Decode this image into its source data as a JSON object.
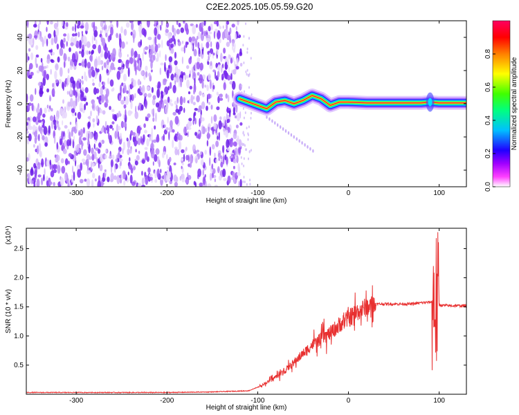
{
  "title": "C2E2.2025.105.05.59.G20",
  "colors": {
    "trace": "#e83030",
    "grid_background": "#ffffff",
    "axis": "#000000",
    "noise_dots": "#7b2cf0",
    "colormap": [
      "#ffffff",
      "#ff00ff",
      "#8000ff",
      "#0000ff",
      "#00ffff",
      "#00ff00",
      "#ffff00",
      "#ff8000",
      "#ff0000",
      "#ff0050"
    ]
  },
  "chart_data": [
    {
      "type": "heatmap",
      "xlabel": "Height of straight line (km)",
      "ylabel": "Frequency (Hz)",
      "xlim": [
        -355,
        130
      ],
      "ylim": [
        -50,
        50
      ],
      "xticks": [
        "-300",
        "-200",
        "-100",
        "0",
        "100"
      ],
      "xtick_values": [
        -300,
        -200,
        -100,
        0,
        100
      ],
      "yticks": [
        "40",
        "20",
        "0",
        "-20",
        "-40"
      ],
      "ytick_values": [
        40,
        20,
        0,
        -20,
        -40
      ],
      "colorbar": {
        "label": "Normalized spectral amplitude",
        "range": [
          0,
          1
        ],
        "ticks": [
          "0.0",
          "0.2",
          "0.4",
          "0.6",
          "0.8"
        ],
        "tick_values": [
          0.0,
          0.2,
          0.4,
          0.6,
          0.8
        ]
      },
      "noise_region_x": [
        -355,
        -118
      ],
      "tone_track": {
        "x": [
          -120,
          -110,
          -100,
          -90,
          -80,
          -70,
          -60,
          -50,
          -40,
          -30,
          -20,
          -10,
          0,
          20,
          40,
          60,
          80,
          90,
          100,
          130
        ],
        "y": [
          3,
          1,
          -1,
          -3,
          1,
          2,
          0,
          2,
          5,
          3,
          -1,
          1,
          1,
          0.5,
          0.5,
          0.5,
          0.5,
          1,
          0.5,
          0.5
        ]
      }
    },
    {
      "type": "line",
      "xlabel": "Height of straight line (km)",
      "ylabel": "SNR (10 * v/v)",
      "multiplier_label": "(x10⁴)",
      "xlim": [
        -355,
        130
      ],
      "ylim": [
        0,
        2.85
      ],
      "xticks": [
        "-300",
        "-200",
        "-100",
        "0",
        "100"
      ],
      "xtick_values": [
        -300,
        -200,
        -100,
        0,
        100
      ],
      "yticks": [
        "0.5",
        "1.0",
        "1.5",
        "2.0",
        "2.5"
      ],
      "ytick_values": [
        0.5,
        1.0,
        1.5,
        2.0,
        2.5
      ],
      "series": [
        {
          "x": [
            -355,
            -300,
            -250,
            -200,
            -150,
            -110,
            -100,
            -90,
            -80,
            -70,
            -60,
            -50,
            -40,
            -30,
            -20,
            -10,
            0,
            10,
            20,
            30,
            40,
            50,
            60,
            70,
            80,
            90,
            95,
            97,
            100,
            110,
            120,
            130
          ],
          "y": [
            0.03,
            0.03,
            0.03,
            0.03,
            0.04,
            0.06,
            0.12,
            0.2,
            0.3,
            0.4,
            0.55,
            0.7,
            0.85,
            0.95,
            1.05,
            1.2,
            1.3,
            1.42,
            1.5,
            1.55,
            1.55,
            1.55,
            1.55,
            1.55,
            1.57,
            1.58,
            1.6,
            1.55,
            1.53,
            1.52,
            1.52,
            1.52
          ]
        }
      ]
    }
  ]
}
